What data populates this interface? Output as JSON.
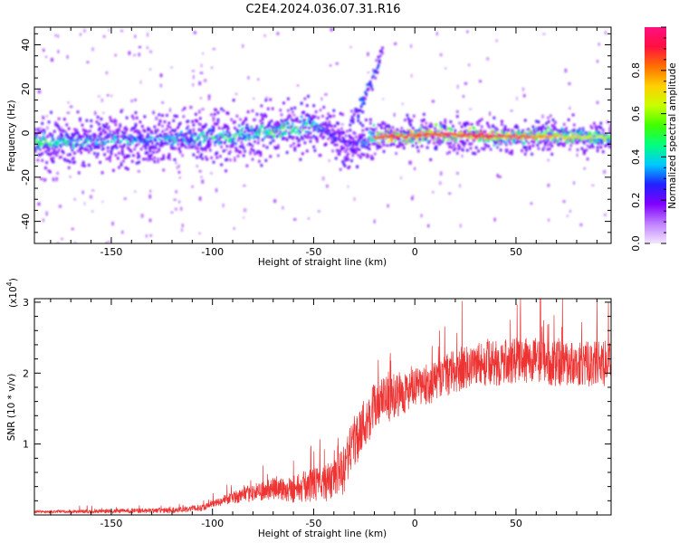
{
  "chart_data": [
    {
      "type": "heatmap",
      "title": "C2E4.2024.036.07.31.R16",
      "xlabel": "Height of straight line (km)",
      "ylabel": "Frequency (Hz)",
      "xlim": [
        -188,
        97
      ],
      "ylim": [
        -50,
        48
      ],
      "xticks": [
        "-150",
        "-100",
        "-50",
        "0",
        "50"
      ],
      "yticks": [
        "-40",
        "-20",
        "0",
        "20",
        "40"
      ],
      "colorbar": {
        "label": "Normalized spectral amplitude",
        "range": [
          0.0,
          1.0
        ],
        "ticks": [
          "0.0",
          "0.2",
          "0.4",
          "0.6",
          "0.8"
        ],
        "colors": [
          "#f2e6ff",
          "#c080ff",
          "#8000ff",
          "#2020ff",
          "#00c8ff",
          "#00ff80",
          "#40ff00",
          "#c8ff00",
          "#ffd000",
          "#ff7000",
          "#ff1040",
          "#ff1080"
        ]
      },
      "ridge": {
        "x": [
          -188,
          -170,
          -150,
          -130,
          -110,
          -90,
          -70,
          -60,
          -50,
          -45,
          -40,
          -35,
          -30,
          -25,
          -20,
          -10,
          0,
          10,
          30,
          50,
          70,
          97
        ],
        "y": [
          -4,
          -4,
          -3.5,
          -3,
          -2.5,
          -1.5,
          0.5,
          2,
          3,
          2,
          -2,
          -4,
          -6,
          -4,
          -2,
          -1.5,
          -1,
          -0.5,
          -1,
          -1.5,
          -1.5,
          -2
        ],
        "amplitude": [
          0.55,
          0.5,
          0.45,
          0.4,
          0.5,
          0.55,
          0.6,
          0.55,
          0.5,
          0.35,
          0.3,
          0.3,
          0.3,
          0.4,
          0.75,
          0.85,
          0.8,
          0.85,
          0.85,
          0.8,
          0.65,
          0.55
        ]
      },
      "secondary_branch": {
        "x": [
          -32,
          -28,
          -24,
          -20,
          -16
        ],
        "y": [
          5,
          10,
          18,
          26,
          38
        ]
      },
      "grid": false
    },
    {
      "type": "line",
      "xlabel": "Height of straight line (km)",
      "ylabel": "SNR (10 * v/v)",
      "y_scale_label": "(x10",
      "y_scale_exp": "4",
      "xlim": [
        -188,
        97
      ],
      "ylim": [
        0,
        3.05
      ],
      "xticks": [
        "-150",
        "-100",
        "-50",
        "0",
        "50"
      ],
      "yticks": [
        "1",
        "2",
        "3"
      ],
      "color": "#ee3333",
      "trend": {
        "x": [
          -188,
          -150,
          -120,
          -105,
          -95,
          -80,
          -70,
          -60,
          -50,
          -40,
          -35,
          -30,
          -25,
          -20,
          -10,
          0,
          10,
          20,
          30,
          40,
          50,
          60,
          70,
          80,
          90,
          97
        ],
        "y": [
          0.04,
          0.05,
          0.06,
          0.1,
          0.2,
          0.3,
          0.35,
          0.35,
          0.4,
          0.45,
          0.6,
          1.0,
          1.25,
          1.5,
          1.65,
          1.75,
          1.85,
          2.0,
          2.1,
          2.1,
          2.15,
          2.15,
          2.1,
          2.1,
          2.1,
          2.1
        ]
      },
      "noise": {
        "x": [
          -188,
          -100,
          -60,
          -40,
          -30,
          0,
          30,
          97
        ],
        "amplitude": [
          0.02,
          0.06,
          0.25,
          0.35,
          0.5,
          0.35,
          0.4,
          0.4
        ]
      },
      "grid": false
    }
  ]
}
